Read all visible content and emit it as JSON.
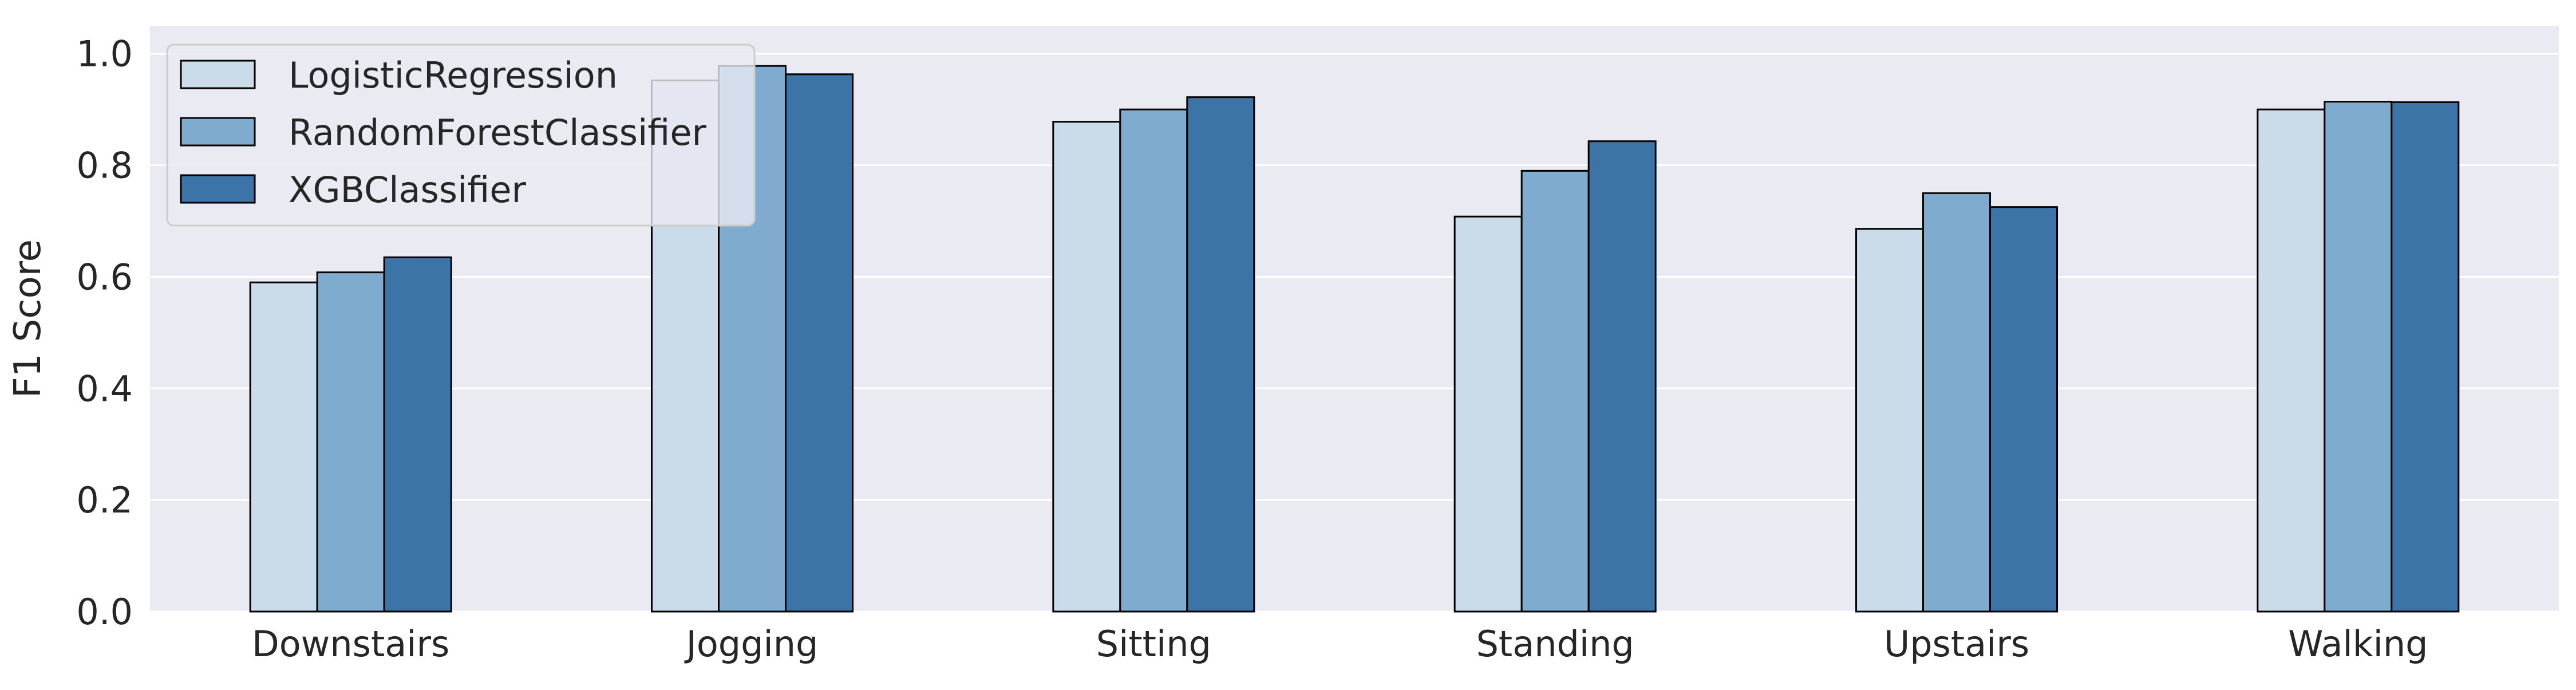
{
  "chart_data": {
    "type": "bar",
    "title": "",
    "xlabel": "",
    "ylabel": "F1 Score",
    "ylim": [
      0,
      1.05
    ],
    "yticks": [
      0.0,
      0.2,
      0.4,
      0.6,
      0.8,
      1.0
    ],
    "ytick_labels": [
      "0.0",
      "0.2",
      "0.4",
      "0.6",
      "0.8",
      "1.0"
    ],
    "grid": true,
    "legend_position": "top-left",
    "categories": [
      "Downstairs",
      "Jogging",
      "Sitting",
      "Standing",
      "Upstairs",
      "Walking"
    ],
    "series": [
      {
        "name": "LogisticRegression",
        "color": "#cadbea",
        "values": [
          0.59,
          0.952,
          0.878,
          0.708,
          0.686,
          0.9
        ]
      },
      {
        "name": "RandomForestClassifier",
        "color": "#7facce",
        "values": [
          0.608,
          0.978,
          0.9,
          0.79,
          0.75,
          0.914
        ]
      },
      {
        "name": "XGBClassifier",
        "color": "#3d74a7",
        "values": [
          0.635,
          0.963,
          0.922,
          0.843,
          0.725,
          0.913
        ]
      }
    ],
    "colors": {
      "plot_background": "#eaeaf2",
      "grid": "#ffffff",
      "bar_edge": "#000000"
    }
  }
}
